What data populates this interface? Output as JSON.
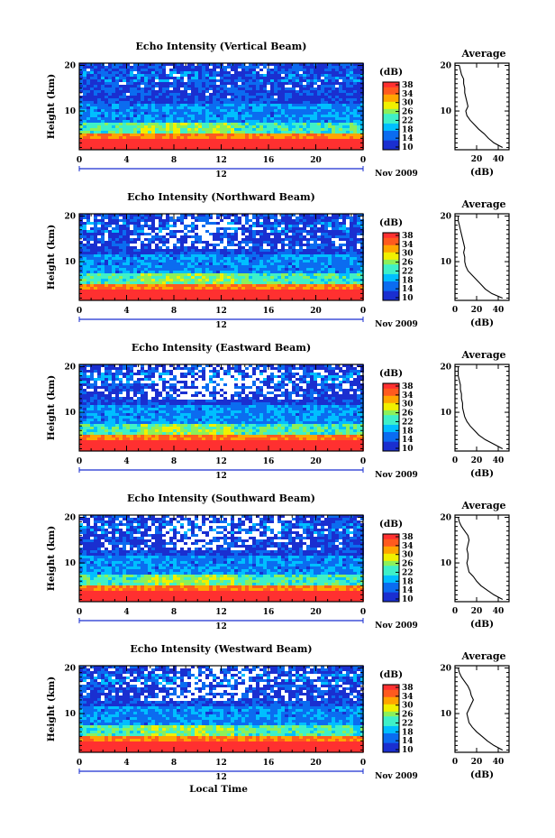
{
  "figure": {
    "xlabel": "Local Time",
    "month_label": "Nov 2009",
    "colorbar_label": "(dB)",
    "colorbar_ticks": [
      "10",
      "14",
      "18",
      "22",
      "26",
      "30",
      "34",
      "38"
    ],
    "profile_title": "Average",
    "profile_xlabel": "(dB)"
  },
  "chart_data": [
    {
      "type": "heatmap",
      "title": "Echo Intensity (Vertical Beam)",
      "xlabel": "",
      "ylabel": "Height (km)",
      "x_ticks": [
        "0",
        "4",
        "8",
        "12",
        "16",
        "20",
        "0"
      ],
      "x_sub_label": "12",
      "y_ticks": [
        "10",
        "20"
      ],
      "xlim": [
        0,
        24
      ],
      "ylim": [
        1.5,
        20.5
      ],
      "clim": [
        10,
        38
      ],
      "colormap": "jet",
      "missing_fraction_upper": 0.08
    },
    {
      "type": "line",
      "title": "Average",
      "xlabel": "(dB)",
      "ylabel": "",
      "x_ticks": [
        "20",
        "40"
      ],
      "y_ticks": [
        "10",
        "20"
      ],
      "xlim": [
        0,
        50
      ],
      "ylim": [
        1.5,
        20.5
      ],
      "heights_km": [
        2,
        3,
        4,
        5,
        6,
        7,
        8,
        9,
        10,
        11,
        12,
        13,
        14,
        15,
        16,
        17,
        18,
        19,
        20
      ],
      "values_db": [
        44,
        36,
        31,
        27,
        22,
        18,
        14,
        11,
        10,
        12,
        11,
        10,
        9,
        9,
        8,
        8,
        6,
        5,
        4
      ]
    },
    {
      "type": "heatmap",
      "title": "Echo Intensity (Northward Beam)",
      "xlabel": "",
      "ylabel": "Height (km)",
      "x_ticks": [
        "0",
        "4",
        "8",
        "12",
        "16",
        "20",
        "0"
      ],
      "x_sub_label": "12",
      "y_ticks": [
        "10",
        "20"
      ],
      "xlim": [
        0,
        24
      ],
      "ylim": [
        1.5,
        20.5
      ],
      "clim": [
        10,
        38
      ],
      "colormap": "jet",
      "missing_fraction_upper": 0.3
    },
    {
      "type": "line",
      "title": "Average",
      "xlabel": "(dB)",
      "ylabel": "",
      "x_ticks": [
        "0",
        "20",
        "40"
      ],
      "y_ticks": [
        "10",
        "20"
      ],
      "xlim": [
        0,
        50
      ],
      "ylim": [
        1.5,
        20.5
      ],
      "heights_km": [
        2,
        3,
        4,
        5,
        6,
        7,
        8,
        9,
        10,
        11,
        12,
        13,
        14,
        15,
        16,
        17,
        18,
        19,
        20
      ],
      "values_db": [
        44,
        34,
        28,
        24,
        20,
        16,
        12,
        10,
        9,
        9,
        8,
        9,
        8,
        7,
        6,
        5,
        4,
        3,
        3
      ]
    },
    {
      "type": "heatmap",
      "title": "Echo Intensity (Eastward Beam)",
      "xlabel": "",
      "ylabel": "Height (km)",
      "x_ticks": [
        "0",
        "4",
        "8",
        "12",
        "16",
        "20",
        "0"
      ],
      "x_sub_label": "12",
      "y_ticks": [
        "10",
        "20"
      ],
      "xlim": [
        0,
        24
      ],
      "ylim": [
        1.5,
        20.5
      ],
      "clim": [
        10,
        38
      ],
      "colormap": "jet",
      "missing_fraction_upper": 0.4
    },
    {
      "type": "line",
      "title": "Average",
      "xlabel": "(dB)",
      "ylabel": "",
      "x_ticks": [
        "0",
        "20",
        "40"
      ],
      "y_ticks": [
        "10",
        "20"
      ],
      "xlim": [
        0,
        50
      ],
      "ylim": [
        1.5,
        20.5
      ],
      "heights_km": [
        2,
        3,
        4,
        5,
        6,
        7,
        8,
        9,
        10,
        11,
        12,
        13,
        14,
        15,
        16,
        17,
        18,
        19,
        20
      ],
      "values_db": [
        44,
        36,
        28,
        22,
        18,
        14,
        11,
        9,
        8,
        7,
        7,
        6,
        6,
        5,
        5,
        4,
        3,
        3,
        3
      ]
    },
    {
      "type": "heatmap",
      "title": "Echo Intensity (Southward Beam)",
      "xlabel": "",
      "ylabel": "Height (km)",
      "x_ticks": [
        "0",
        "4",
        "8",
        "12",
        "16",
        "20",
        "0"
      ],
      "x_sub_label": "12",
      "y_ticks": [
        "10",
        "20"
      ],
      "xlim": [
        0,
        24
      ],
      "ylim": [
        1.5,
        20.5
      ],
      "clim": [
        10,
        38
      ],
      "colormap": "jet",
      "missing_fraction_upper": 0.35
    },
    {
      "type": "line",
      "title": "Average",
      "xlabel": "(dB)",
      "ylabel": "",
      "x_ticks": [
        "0",
        "20",
        "40"
      ],
      "y_ticks": [
        "10",
        "20"
      ],
      "xlim": [
        0,
        50
      ],
      "ylim": [
        1.5,
        20.5
      ],
      "heights_km": [
        2,
        3,
        4,
        5,
        6,
        7,
        8,
        9,
        10,
        11,
        12,
        13,
        14,
        15,
        16,
        17,
        18,
        19,
        20
      ],
      "values_db": [
        44,
        36,
        30,
        24,
        20,
        17,
        13,
        12,
        11,
        12,
        12,
        11,
        12,
        13,
        12,
        9,
        6,
        4,
        3
      ]
    },
    {
      "type": "heatmap",
      "title": "Echo Intensity (Westward Beam)",
      "xlabel": "Local Time",
      "ylabel": "Height (km)",
      "x_ticks": [
        "0",
        "4",
        "8",
        "12",
        "16",
        "20",
        "0"
      ],
      "x_sub_label": "12",
      "y_ticks": [
        "10",
        "20"
      ],
      "xlim": [
        0,
        24
      ],
      "ylim": [
        1.5,
        20.5
      ],
      "clim": [
        10,
        38
      ],
      "colormap": "jet",
      "missing_fraction_upper": 0.35
    },
    {
      "type": "line",
      "title": "Average",
      "xlabel": "(dB)",
      "ylabel": "",
      "x_ticks": [
        "0",
        "20",
        "40"
      ],
      "y_ticks": [
        "10",
        "20"
      ],
      "xlim": [
        0,
        50
      ],
      "ylim": [
        1.5,
        20.5
      ],
      "heights_km": [
        2,
        3,
        4,
        5,
        6,
        7,
        8,
        9,
        10,
        11,
        12,
        13,
        14,
        15,
        16,
        17,
        18,
        19,
        20
      ],
      "values_db": [
        44,
        36,
        30,
        25,
        20,
        16,
        13,
        12,
        11,
        13,
        15,
        17,
        15,
        14,
        12,
        9,
        6,
        4,
        3
      ]
    }
  ]
}
